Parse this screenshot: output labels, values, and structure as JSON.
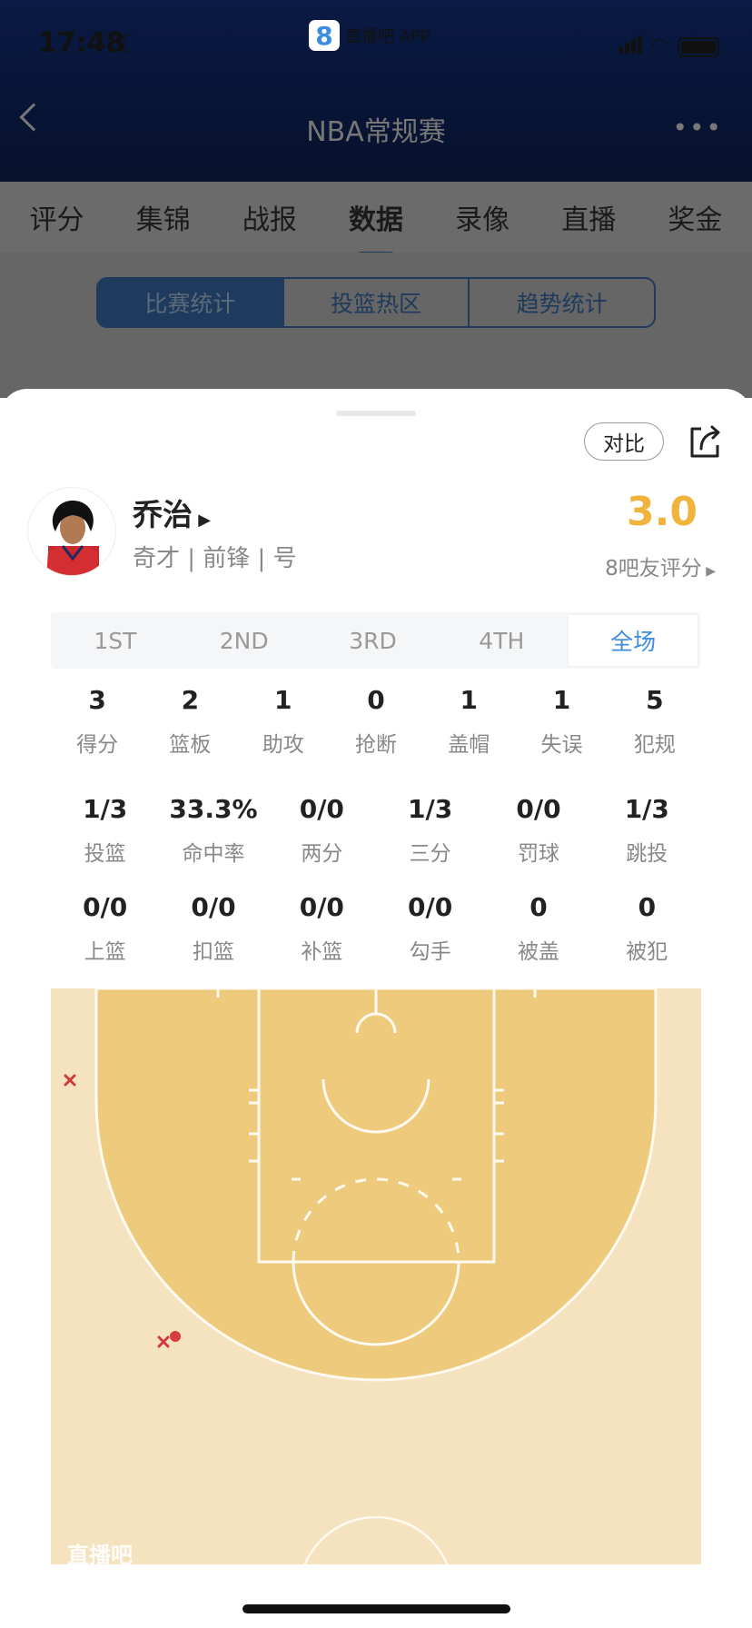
{
  "status_bar": {
    "time": "17:48",
    "app_label": "直播吧 APP",
    "app_logo": "8"
  },
  "header": {
    "title": "NBA常规赛",
    "back_icon": "chevron-left-icon",
    "more_icon": "more-icon"
  },
  "tabs": [
    {
      "label": "评分"
    },
    {
      "label": "集锦"
    },
    {
      "label": "战报"
    },
    {
      "label": "数据",
      "active": true
    },
    {
      "label": "录像"
    },
    {
      "label": "直播"
    },
    {
      "label": "奖金"
    }
  ],
  "segments": [
    {
      "label": "比赛统计",
      "active": true
    },
    {
      "label": "投篮热区"
    },
    {
      "label": "趋势统计"
    }
  ],
  "sheet": {
    "compare_label": "对比",
    "player": {
      "name": "乔治",
      "subtitle": "奇才 | 前锋 | 号",
      "rating": "3.0",
      "rating_label": "8吧友评分"
    },
    "periods": [
      {
        "label": "1ST"
      },
      {
        "label": "2ND"
      },
      {
        "label": "3RD"
      },
      {
        "label": "4TH"
      },
      {
        "label": "全场",
        "active": true
      }
    ],
    "stats_row1": [
      {
        "v": "3",
        "l": "得分"
      },
      {
        "v": "2",
        "l": "篮板"
      },
      {
        "v": "1",
        "l": "助攻"
      },
      {
        "v": "0",
        "l": "抢断"
      },
      {
        "v": "1",
        "l": "盖帽"
      },
      {
        "v": "1",
        "l": "失误"
      },
      {
        "v": "5",
        "l": "犯规"
      }
    ],
    "stats_row2": [
      {
        "v": "1/3",
        "l": "投篮"
      },
      {
        "v": "33.3%",
        "l": "命中率"
      },
      {
        "v": "0/0",
        "l": "两分"
      },
      {
        "v": "1/3",
        "l": "三分"
      },
      {
        "v": "0/0",
        "l": "罚球"
      },
      {
        "v": "1/3",
        "l": "跳投"
      }
    ],
    "stats_row3": [
      {
        "v": "0/0",
        "l": "上篮"
      },
      {
        "v": "0/0",
        "l": "扣篮"
      },
      {
        "v": "0/0",
        "l": "补篮"
      },
      {
        "v": "0/0",
        "l": "勾手"
      },
      {
        "v": "0",
        "l": "被盖"
      },
      {
        "v": "0",
        "l": "被犯"
      }
    ],
    "court": {
      "watermark": "直播吧",
      "shots": [
        {
          "result": "miss"
        },
        {
          "result": "miss"
        },
        {
          "result": "made"
        }
      ],
      "colors": {
        "paint": "#eeca7c",
        "floor": "#f5e3c0",
        "miss": "#d03a3a",
        "made": "#d63d3d"
      }
    }
  },
  "colors": {
    "accent": "#3a8de0",
    "rating": "#f0b43c",
    "segment": "#1e3a5c"
  }
}
